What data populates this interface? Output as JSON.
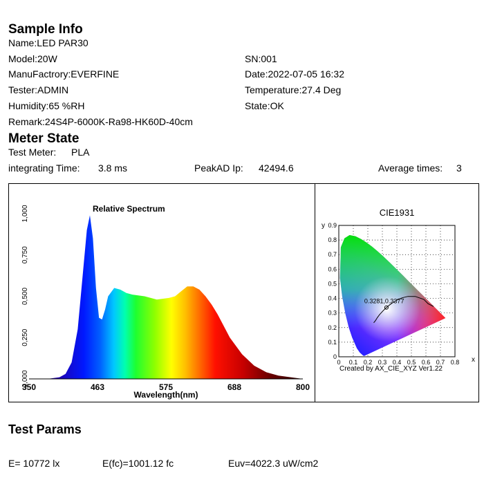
{
  "sample_info": {
    "heading": "Sample Info",
    "name": "Name:LED PAR30",
    "model": "Model:20W",
    "sn": "SN:001",
    "manufactory": "ManuFactrory:EVERFINE",
    "date": "Date:2022-07-05 16:32",
    "tester": "Tester:ADMIN",
    "temperature": "Temperature:27.4 Deg",
    "humidity": "Humidity:65 %RH",
    "state": "State:OK",
    "remark": "Remark:24S4P-6000K-Ra98-HK60D-40cm"
  },
  "meter_state": {
    "heading": "Meter State",
    "test_meter_label": "Test Meter:",
    "test_meter_value": "PLA",
    "integrating_label": "integrating Time:",
    "integrating_value": "3.8 ms",
    "peak_label": "PeakAD Ip:",
    "peak_value": "42494.6",
    "average_label": "Average times:",
    "average_value": "3"
  },
  "chart_data": [
    {
      "type": "area",
      "title": "Relative Spectrum",
      "xlabel": "Wavelength(nm)",
      "ylabel": "",
      "xlim": [
        350,
        800
      ],
      "ylim": [
        0,
        1
      ],
      "x_ticks": [
        "350",
        "463",
        "575",
        "688",
        "800"
      ],
      "y_ticks": [
        "0,000",
        "0,250",
        "0,500",
        "0,750",
        "1,000"
      ],
      "x": [
        350,
        380,
        400,
        410,
        420,
        430,
        440,
        445,
        450,
        455,
        460,
        465,
        470,
        475,
        480,
        490,
        500,
        510,
        520,
        540,
        560,
        580,
        590,
        600,
        610,
        620,
        630,
        640,
        650,
        660,
        670,
        680,
        700,
        720,
        740,
        760,
        780,
        800
      ],
      "y": [
        0.0,
        0.0,
        0.01,
        0.03,
        0.1,
        0.3,
        0.7,
        0.9,
        0.99,
        0.85,
        0.55,
        0.37,
        0.36,
        0.42,
        0.5,
        0.55,
        0.54,
        0.52,
        0.51,
        0.5,
        0.48,
        0.49,
        0.5,
        0.53,
        0.56,
        0.56,
        0.54,
        0.5,
        0.45,
        0.39,
        0.32,
        0.25,
        0.15,
        0.08,
        0.04,
        0.02,
        0.01,
        0.0
      ]
    },
    {
      "type": "scatter",
      "title": "CIE1931",
      "xlabel": "x",
      "ylabel": "y",
      "xlim": [
        0,
        0.8
      ],
      "ylim": [
        0,
        0.9
      ],
      "x_ticks": [
        "0",
        "0.1",
        "0.2",
        "0.3",
        "0.4",
        "0.5",
        "0.6",
        "0.7",
        "0.8"
      ],
      "y_ticks": [
        "0",
        "0.1",
        "0.2",
        "0.3",
        "0.4",
        "0.5",
        "0.6",
        "0.7",
        "0.8",
        "0.9"
      ],
      "point": {
        "x": 0.3281,
        "y": 0.3377
      },
      "point_label": "0.3281,0.3377",
      "credit": "Created by AX_CIE_XYZ Ver1.22"
    }
  ],
  "test_params": {
    "heading": "Test Params",
    "e": "E=  10772 lx",
    "efc": "E(fc)=1001.12 fc",
    "euv": "Euv=4022.3 uW/cm2"
  }
}
